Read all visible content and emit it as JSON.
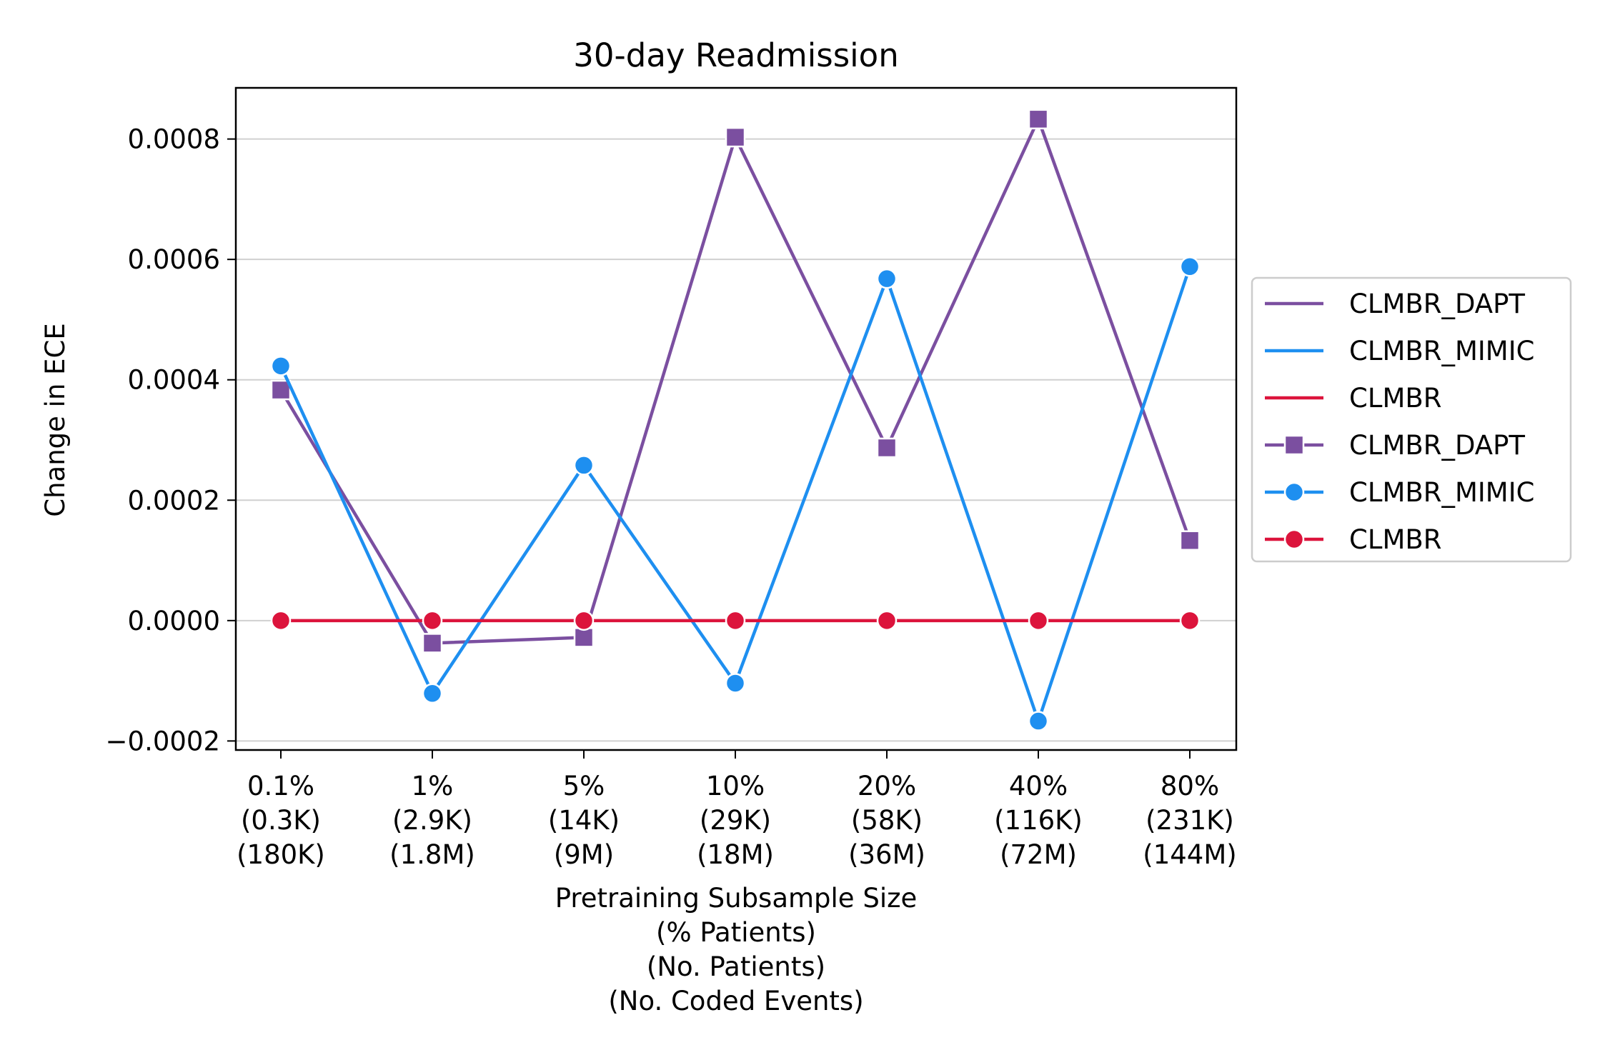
{
  "chart_data": {
    "type": "line",
    "title": "30-day Readmission",
    "xlabel_lines": [
      "Pretraining Subsample Size",
      "(% Patients)",
      "(No. Patients)",
      "(No. Coded Events)"
    ],
    "ylabel": "Change in ECE",
    "ylim": [
      -0.000215,
      0.000885
    ],
    "yticks": [
      -0.0002,
      0.0,
      0.0002,
      0.0004,
      0.0006,
      0.0008
    ],
    "ytick_labels": [
      "−0.0002",
      "0.0000",
      "0.0002",
      "0.0004",
      "0.0006",
      "0.0008"
    ],
    "grid": "horizontal",
    "legend_position": "right-outside",
    "categories": [
      [
        "0.1%",
        "(0.3K)",
        "(180K)"
      ],
      [
        "1%",
        "(2.9K)",
        "(1.8M)"
      ],
      [
        "5%",
        "(14K)",
        "(9M)"
      ],
      [
        "10%",
        "(29K)",
        "(18M)"
      ],
      [
        "20%",
        "(58K)",
        "(36M)"
      ],
      [
        "40%",
        "(116K)",
        "(72M)"
      ],
      [
        "80%",
        "(231K)",
        "(144M)"
      ]
    ],
    "series": [
      {
        "name": "CLMBR_DAPT",
        "color": "#7b4fa0",
        "marker": "square",
        "values": [
          0.000383,
          -3.75e-05,
          -2.8e-05,
          0.000803,
          0.000287,
          0.000833,
          0.000133
        ]
      },
      {
        "name": "CLMBR_MIMIC",
        "color": "#1e8ff0",
        "marker": "circle",
        "values": [
          0.000423,
          -0.000121,
          0.000258,
          -0.000104,
          0.000568,
          -0.000167,
          0.000588
        ]
      },
      {
        "name": "CLMBR",
        "color": "#dc143c",
        "marker": "circle",
        "values": [
          0.0,
          0.0,
          0.0,
          0.0,
          0.0,
          0.0,
          0.0
        ]
      }
    ],
    "legend_entries": [
      {
        "label": "CLMBR_DAPT",
        "series": 0,
        "kind": "line"
      },
      {
        "label": "CLMBR_MIMIC",
        "series": 1,
        "kind": "line"
      },
      {
        "label": "CLMBR",
        "series": 2,
        "kind": "line"
      },
      {
        "label": "CLMBR_DAPT",
        "series": 0,
        "kind": "marker"
      },
      {
        "label": "CLMBR_MIMIC",
        "series": 1,
        "kind": "marker"
      },
      {
        "label": "CLMBR",
        "series": 2,
        "kind": "marker"
      }
    ]
  }
}
